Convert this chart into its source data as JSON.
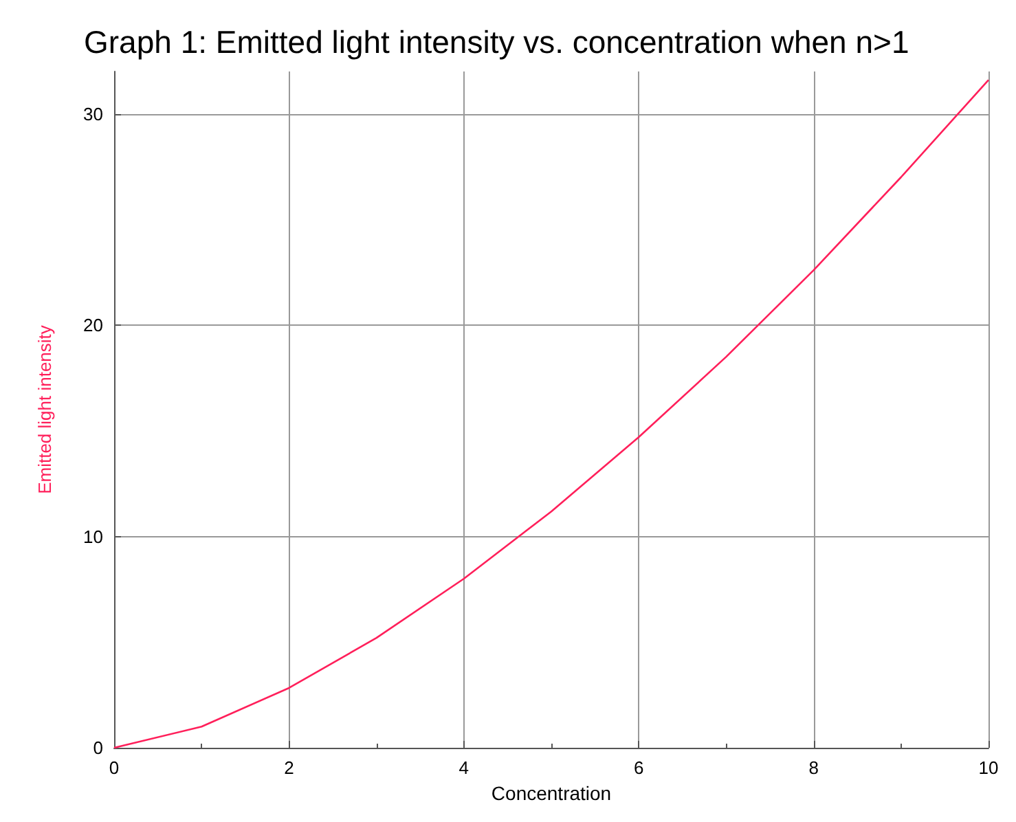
{
  "chart_data": {
    "type": "line",
    "title": "Graph 1: Emitted light intensity vs. concentration when n>1",
    "xlabel": "Concentration",
    "ylabel": "Emitted light intensity",
    "x": [
      0,
      1,
      2,
      3,
      4,
      5,
      6,
      7,
      8,
      9,
      10
    ],
    "series": [
      {
        "color": "#ff1f5a",
        "values": [
          0,
          1,
          2.83,
          5.2,
          8,
          11.18,
          14.7,
          18.5,
          22.6,
          27,
          31.6
        ]
      }
    ],
    "xlim": [
      0,
      10
    ],
    "xticks": [
      0,
      2,
      4,
      6,
      8,
      10
    ],
    "ylim": [
      0,
      32
    ],
    "yticks": [
      0,
      10,
      20,
      30
    ],
    "grid": true,
    "marker": "none",
    "line_style": "solid"
  }
}
